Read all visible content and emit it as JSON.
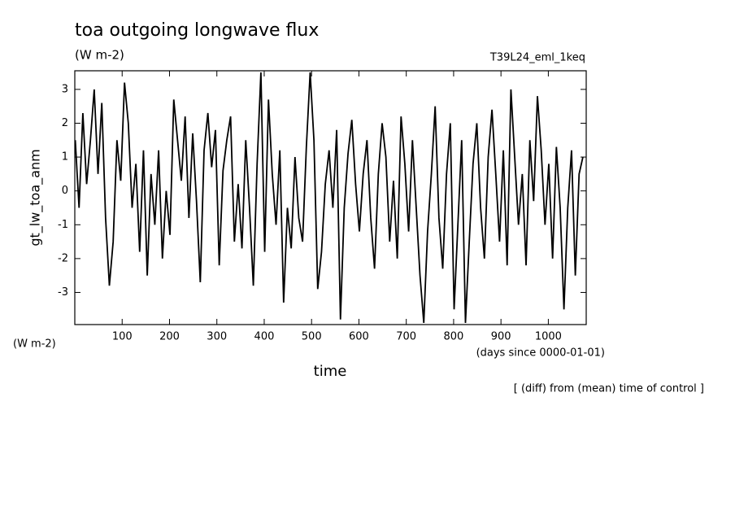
{
  "chart_data": {
    "type": "line",
    "title": "toa outgoing longwave flux",
    "units": "(W m-2)",
    "run_label": "T39L24_eml_1keq",
    "y_label": "gt_lw_toa_anm",
    "y_units": "(W m-2)",
    "x_label": "time",
    "x_units": "(days since 0000-01-01)",
    "note": "[ (diff) from (mean) time of control ]",
    "xlim": [
      0,
      1080
    ],
    "ylim": [
      -3.95,
      3.55
    ],
    "xticks": [
      100,
      200,
      300,
      400,
      500,
      600,
      700,
      800,
      900,
      1000
    ],
    "yticks": [
      -3,
      -2,
      -1,
      0,
      1,
      2,
      3
    ],
    "color": "#000000",
    "x": [
      1,
      9,
      17,
      25,
      33,
      41,
      49,
      57,
      65,
      73,
      81,
      89,
      97,
      105,
      113,
      121,
      129,
      137,
      145,
      153,
      161,
      169,
      177,
      185,
      193,
      201,
      209,
      217,
      225,
      233,
      241,
      249,
      257,
      265,
      273,
      281,
      289,
      297,
      305,
      313,
      321,
      329,
      337,
      345,
      353,
      361,
      369,
      377,
      385,
      393,
      401,
      409,
      417,
      425,
      433,
      441,
      449,
      457,
      465,
      473,
      481,
      489,
      497,
      505,
      513,
      521,
      529,
      537,
      545,
      553,
      561,
      569,
      577,
      585,
      593,
      601,
      609,
      617,
      625,
      633,
      641,
      649,
      657,
      665,
      673,
      681,
      689,
      697,
      705,
      713,
      721,
      729,
      737,
      745,
      753,
      761,
      769,
      777,
      785,
      793,
      801,
      809,
      817,
      825,
      833,
      841,
      849,
      857,
      865,
      873,
      881,
      889,
      897,
      905,
      913,
      921,
      929,
      937,
      945,
      953,
      961,
      969,
      977,
      985,
      993,
      1001,
      1009,
      1017,
      1025,
      1033,
      1041,
      1049,
      1057,
      1065,
      1073
    ],
    "values": [
      1.5,
      -0.5,
      2.3,
      0.2,
      1.5,
      3.0,
      0.5,
      2.6,
      -0.8,
      -2.8,
      -1.5,
      1.5,
      0.3,
      3.2,
      2.0,
      -0.5,
      0.8,
      -1.8,
      1.2,
      -2.5,
      0.5,
      -1.0,
      1.2,
      -2.0,
      0.0,
      -1.3,
      2.7,
      1.5,
      0.3,
      2.2,
      -0.8,
      1.7,
      -0.3,
      -2.7,
      1.2,
      2.3,
      0.7,
      1.8,
      -2.2,
      0.6,
      1.5,
      2.2,
      -1.5,
      0.2,
      -1.7,
      1.5,
      -0.5,
      -2.8,
      0.8,
      3.5,
      -1.8,
      2.7,
      0.5,
      -1.0,
      1.2,
      -3.3,
      -0.5,
      -1.7,
      1.0,
      -0.8,
      -1.5,
      1.3,
      3.5,
      1.5,
      -2.9,
      -1.8,
      0.2,
      1.2,
      -0.5,
      1.8,
      -3.8,
      -0.5,
      1.1,
      2.1,
      0.2,
      -1.2,
      0.5,
      1.5,
      -0.8,
      -2.3,
      0.5,
      2.0,
      1.0,
      -1.5,
      0.3,
      -2.0,
      2.2,
      0.8,
      -1.2,
      1.5,
      -0.5,
      -2.5,
      -3.9,
      -1.2,
      0.5,
      2.5,
      -0.8,
      -2.3,
      0.5,
      2.0,
      -3.5,
      -1.0,
      1.5,
      -3.9,
      -1.5,
      0.8,
      2.0,
      -0.5,
      -2.0,
      1.0,
      2.4,
      0.5,
      -1.5,
      1.2,
      -2.2,
      3.0,
      1.0,
      -1.0,
      0.5,
      -2.2,
      1.5,
      -0.3,
      2.8,
      1.2,
      -1.0,
      0.8,
      -2.0,
      1.3,
      -0.5,
      -3.5,
      -0.5,
      1.2,
      -2.5,
      0.5,
      1.0
    ]
  }
}
